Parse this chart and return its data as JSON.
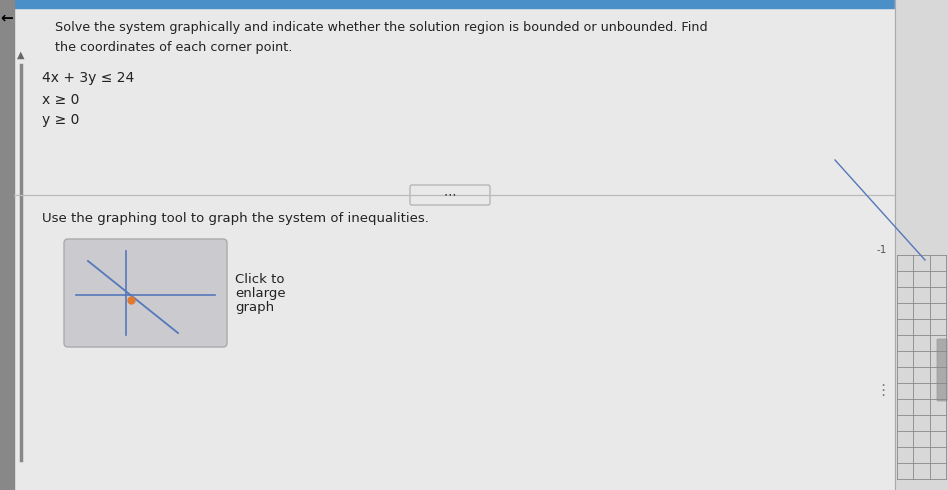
{
  "title_line1": "Solve the system graphically and indicate whether the solution region is bounded or unbounded. Find",
  "title_line2": "the coordinates of each corner point.",
  "inequality1": "4x + 3y ≤ 24",
  "inequality2": "x ≥ 0",
  "inequality3": "y ≥ 0",
  "instruction": "Use the graphing tool to graph the system of inequalities.",
  "button_text_line1": "Click to",
  "button_text_line2": "enlarge",
  "button_text_line3": "graph",
  "bg_color": "#e9e9e9",
  "left_bar_color": "#888888",
  "divider_color": "#bbbbbb",
  "text_color": "#222222",
  "button_bg": "#cbcbcf",
  "graph_line_color": "#5577bb",
  "graph_orange": "#e07830",
  "graph_axes_color": "#5577bb",
  "top_bar_color": "#4a8fc8",
  "right_panel_color": "#d8d8d8",
  "grid_color": "#888888",
  "scrollbar_color": "#888899",
  "arrow_color": "#333333",
  "minus1_color": "#555555"
}
